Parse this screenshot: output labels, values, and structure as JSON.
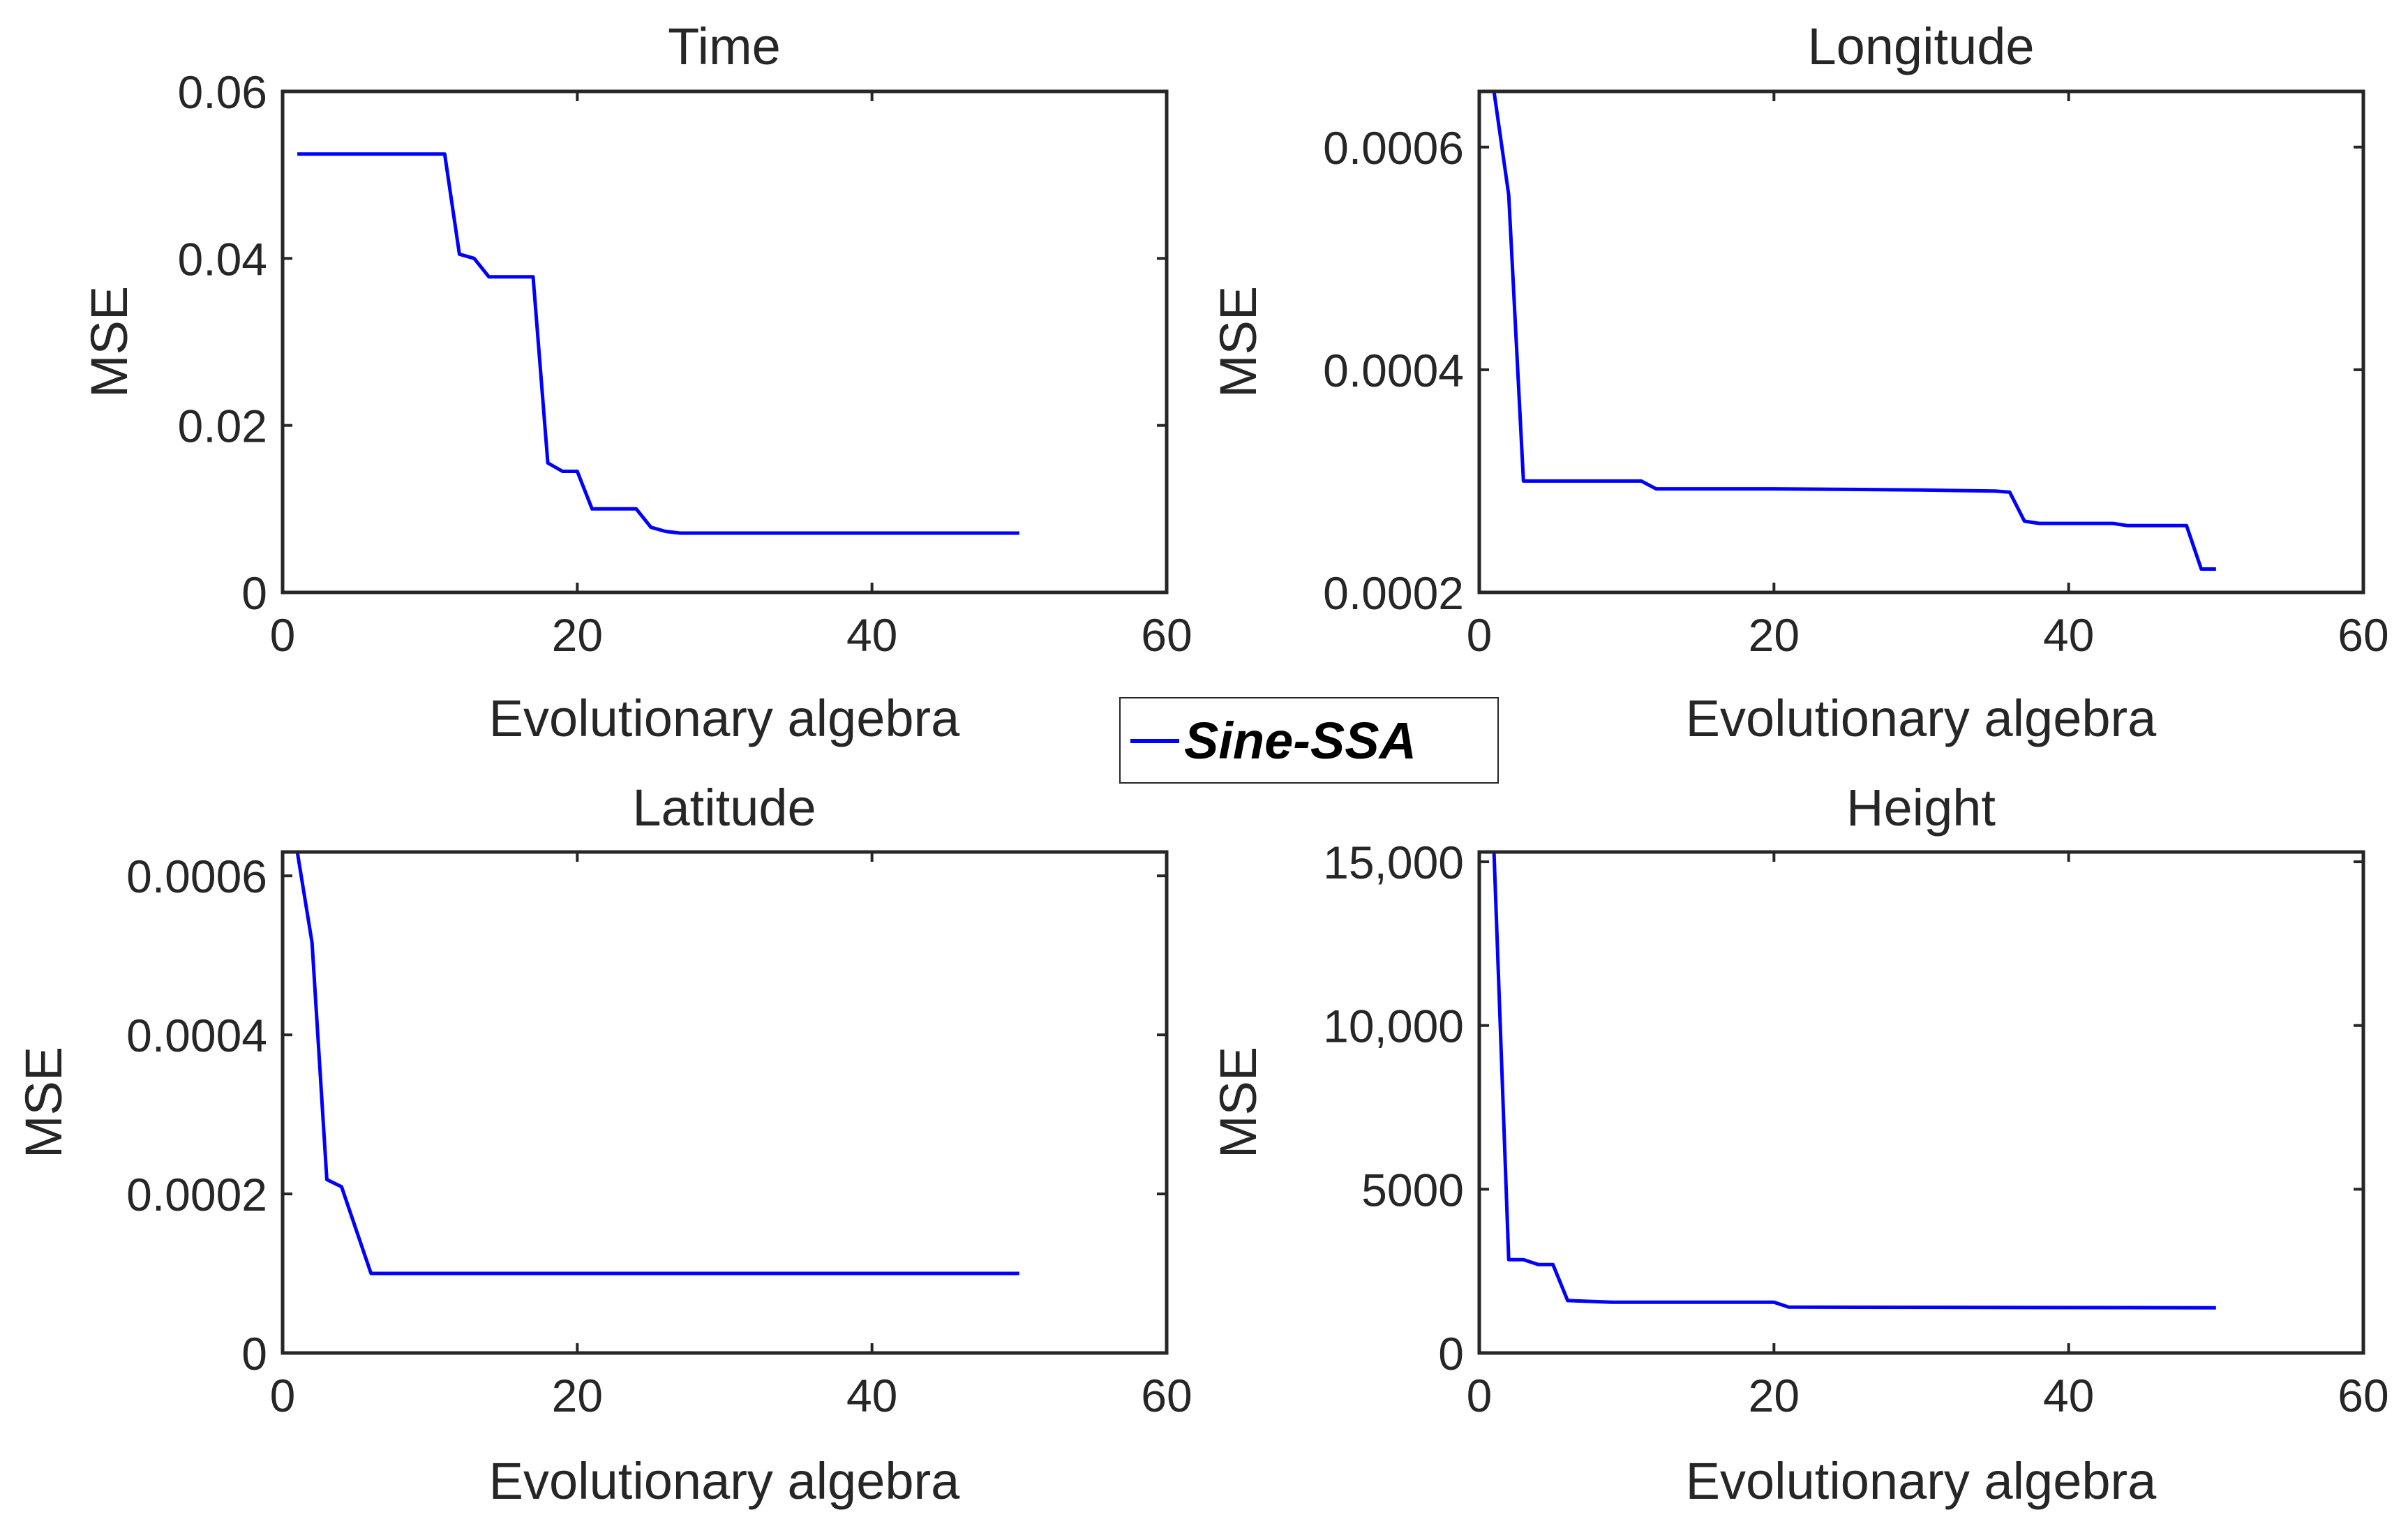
{
  "colors": {
    "series": "#0000ff",
    "axis": "#262626",
    "background": "#ffffff"
  },
  "legend": {
    "label": "Sine-SSA",
    "location": "center"
  },
  "chart_data": [
    {
      "type": "line",
      "title": "Time",
      "xlabel": "Evolutionary algebra",
      "ylabel": "MSE",
      "xlim": [
        0,
        60
      ],
      "ylim": [
        0,
        0.06
      ],
      "xticks": [
        0,
        20,
        40,
        60
      ],
      "xtick_labels": [
        "0",
        "20",
        "40",
        "60"
      ],
      "yticks": [
        0,
        0.02,
        0.04,
        0.06
      ],
      "ytick_labels": [
        "0",
        "0.02",
        "0.04",
        "0.06"
      ],
      "series": [
        {
          "name": "Sine-SSA",
          "x": [
            1,
            11,
            12,
            13,
            14,
            17,
            18,
            19,
            20,
            21,
            24,
            25,
            26,
            27,
            50
          ],
          "y": [
            0.0525,
            0.0525,
            0.0405,
            0.04,
            0.0378,
            0.0378,
            0.0155,
            0.0145,
            0.0145,
            0.01,
            0.01,
            0.0078,
            0.0073,
            0.0071,
            0.0071
          ]
        }
      ]
    },
    {
      "type": "line",
      "title": "Longitude",
      "xlabel": "Evolutionary algebra",
      "ylabel": "MSE",
      "xlim": [
        0,
        60
      ],
      "ylim": [
        0.0002,
        0.00065
      ],
      "xticks": [
        0,
        20,
        40,
        60
      ],
      "xtick_labels": [
        "0",
        "20",
        "40",
        "60"
      ],
      "yticks": [
        0.0002,
        0.0004,
        0.0006
      ],
      "ytick_labels": [
        "0.0002",
        "0.0004",
        "0.0006"
      ],
      "series": [
        {
          "name": "Sine-SSA",
          "x": [
            1,
            2,
            3,
            11,
            12,
            20,
            30,
            35,
            36,
            37,
            38,
            43,
            44,
            48,
            49,
            50
          ],
          "y": [
            0.00066,
            0.000557,
            0.0003,
            0.0003,
            0.000293,
            0.000293,
            0.000292,
            0.000291,
            0.00029,
            0.000264,
            0.000262,
            0.000262,
            0.00026,
            0.00026,
            0.000221,
            0.000221
          ]
        }
      ]
    },
    {
      "type": "line",
      "title": "Latitude",
      "xlabel": "Evolutionary algebra",
      "ylabel": "MSE",
      "xlim": [
        0,
        60
      ],
      "ylim": [
        0,
        0.00063
      ],
      "xticks": [
        0,
        20,
        40,
        60
      ],
      "xtick_labels": [
        "0",
        "20",
        "40",
        "60"
      ],
      "yticks": [
        0,
        0.0002,
        0.0004,
        0.0006
      ],
      "ytick_labels": [
        "0",
        "0.0002",
        "0.0004",
        "0.0006"
      ],
      "series": [
        {
          "name": "Sine-SSA",
          "x": [
            1,
            2,
            3,
            4,
            6,
            50
          ],
          "y": [
            0.00063,
            0.000516,
            0.000218,
            0.000209,
            0.0001,
            0.0001
          ]
        }
      ]
    },
    {
      "type": "line",
      "title": "Height",
      "xlabel": "Evolutionary algebra",
      "ylabel": "MSE",
      "xlim": [
        0,
        60
      ],
      "ylim": [
        0,
        15300
      ],
      "xticks": [
        0,
        20,
        40,
        60
      ],
      "xtick_labels": [
        "0",
        "20",
        "40",
        "60"
      ],
      "yticks": [
        0,
        5000,
        10000,
        15000
      ],
      "ytick_labels": [
        "0",
        "5000",
        "10,000",
        "15,000"
      ],
      "series": [
        {
          "name": "Sine-SSA",
          "x": [
            1,
            2,
            3,
            4,
            5,
            6,
            9,
            20,
            21,
            50
          ],
          "y": [
            15300,
            2850,
            2850,
            2700,
            2700,
            1600,
            1550,
            1550,
            1400,
            1380
          ]
        }
      ]
    }
  ]
}
